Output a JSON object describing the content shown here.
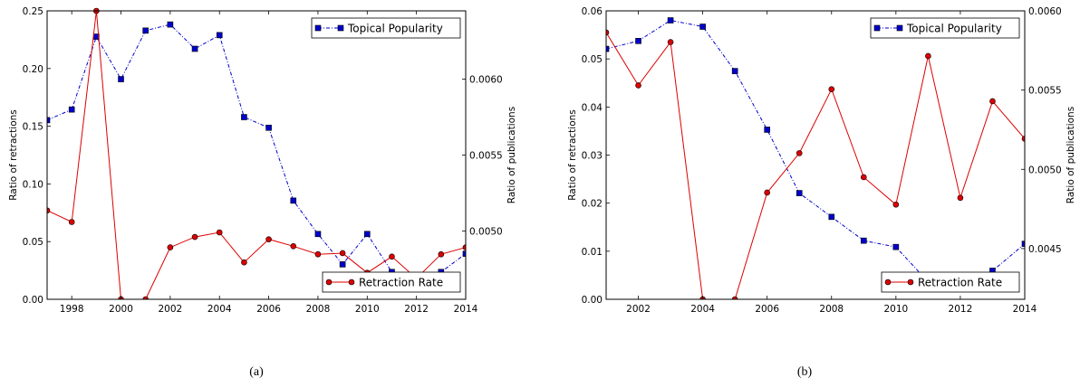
{
  "chart_data": [
    {
      "type": "line",
      "caption": "(a)",
      "xlim": [
        1997,
        2014
      ],
      "x_ticks": [
        1998,
        2000,
        2002,
        2004,
        2006,
        2008,
        2010,
        2012,
        2014
      ],
      "ylabel": "Ratio of retractions",
      "ylim": [
        0,
        0.25
      ],
      "y_ticks": [
        "0.00",
        "0.05",
        "0.10",
        "0.15",
        "0.20",
        "0.25"
      ],
      "ylabel_right": "Ratio of publications",
      "ylim_right": [
        0.00455,
        0.00645
      ],
      "y_ticks_right": [
        "0.0050",
        "0.0055",
        "0.0060"
      ],
      "series": [
        {
          "name": "Topical Popularity",
          "axis": "right",
          "color": "#0000cc",
          "marker": "square",
          "linestyle": "dashdot",
          "legend_position": "top-right",
          "x": [
            1997,
            1998,
            1999,
            2000,
            2001,
            2002,
            2003,
            2004,
            2005,
            2006,
            2007,
            2008,
            2009,
            2010,
            2011,
            2012,
            2013,
            2014
          ],
          "values": [
            0.00573,
            0.0058,
            0.00628,
            0.006,
            0.00632,
            0.00636,
            0.0062,
            0.00629,
            0.00575,
            0.00568,
            0.0052,
            0.00498,
            0.00478,
            0.00498,
            0.00473,
            0.00466,
            0.00473,
            0.00485
          ]
        },
        {
          "name": "Retraction Rate",
          "axis": "left",
          "color": "#dd0000",
          "marker": "circle",
          "linestyle": "solid",
          "legend_position": "bottom-right",
          "x": [
            1997,
            1998,
            1999,
            2000,
            2001,
            2002,
            2003,
            2004,
            2005,
            2006,
            2007,
            2008,
            2009,
            2010,
            2011,
            2012,
            2013,
            2014
          ],
          "values": [
            0.077,
            0.067,
            0.25,
            0.0,
            0.0,
            0.045,
            0.054,
            0.058,
            0.032,
            0.052,
            0.046,
            0.039,
            0.04,
            0.023,
            0.037,
            0.018,
            0.039,
            0.045
          ]
        }
      ]
    },
    {
      "type": "line",
      "caption": "(b)",
      "xlim": [
        2001,
        2014
      ],
      "x_ticks": [
        2002,
        2004,
        2006,
        2008,
        2010,
        2012,
        2014
      ],
      "ylabel": "Ratio of retractions",
      "ylim": [
        0,
        0.06
      ],
      "y_ticks": [
        "0.00",
        "0.01",
        "0.02",
        "0.03",
        "0.04",
        "0.05",
        "0.06"
      ],
      "ylabel_right": "Ratio of publications",
      "ylim_right": [
        0.00418,
        0.006
      ],
      "y_ticks_right": [
        "0.0045",
        "0.0050",
        "0.0055",
        "0.0060"
      ],
      "series": [
        {
          "name": "Topical Popularity",
          "axis": "right",
          "color": "#0000cc",
          "marker": "square",
          "linestyle": "dashdot",
          "legend_position": "top-right",
          "x": [
            2001,
            2002,
            2003,
            2004,
            2005,
            2006,
            2007,
            2008,
            2009,
            2010,
            2011,
            2012,
            2013,
            2014
          ],
          "values": [
            0.00576,
            0.00581,
            0.00594,
            0.0059,
            0.00562,
            0.00525,
            0.00485,
            0.0047,
            0.00455,
            0.00451,
            0.00429,
            0.00429,
            0.00436,
            0.00453
          ]
        },
        {
          "name": "Retraction Rate",
          "axis": "left",
          "color": "#dd0000",
          "marker": "circle",
          "linestyle": "solid",
          "legend_position": "bottom-right",
          "x": [
            2001,
            2002,
            2003,
            2004,
            2005,
            2006,
            2007,
            2008,
            2009,
            2010,
            2011,
            2012,
            2013,
            2014
          ],
          "values": [
            0.0555,
            0.0445,
            0.0535,
            0.0,
            0.0,
            0.0222,
            0.0304,
            0.0437,
            0.0254,
            0.0197,
            0.0506,
            0.0211,
            0.0412,
            0.0334
          ]
        }
      ]
    }
  ]
}
